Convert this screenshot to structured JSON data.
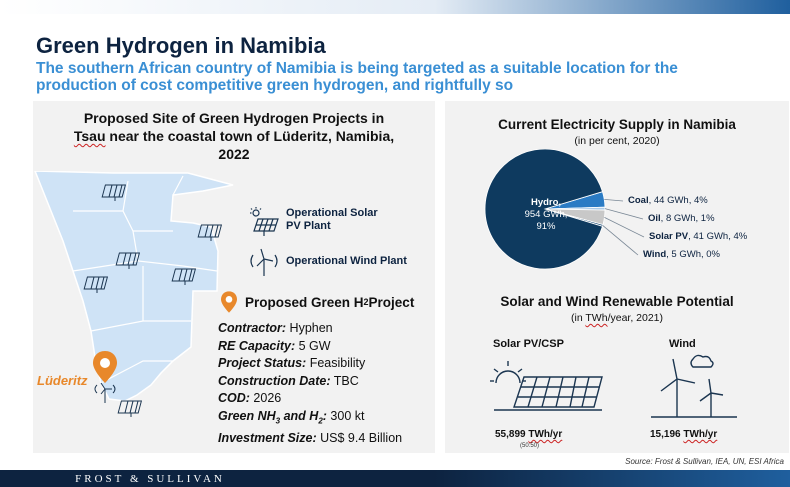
{
  "header": {
    "title": "Green Hydrogen in Namibia",
    "subtitle": "The southern African country of Namibia is being targeted as a suitable location for the production of cost competitive green hydrogen, and rightfully so"
  },
  "map_panel": {
    "title_line1": "Proposed Site of Green Hydrogen Projects in",
    "title_line2_a": "Tsau",
    "title_line2_b": " near the coastal town of Lüderitz, Namibia,",
    "title_line3": "2022",
    "legend_solar": "Operational Solar PV Plant",
    "legend_wind": "Operational Wind Plant",
    "location_label": "Lüderitz",
    "project_heading": "Proposed Green H",
    "project_heading_sub": "2",
    "project_heading_end": " Project",
    "details": {
      "contractor_key": "Contractor:",
      "contractor_val": " Hyphen",
      "re_key": "RE Capacity:",
      "re_val": " 5 GW",
      "status_key": "Project Status:",
      "status_val": " Feasibility",
      "construction_key": "Construction Date:",
      "construction_val": " TBC",
      "cod_key": "COD:",
      "cod_val": " 2026",
      "nh3_key_a": "Green NH",
      "nh3_key_sub1": "3",
      "nh3_key_b": " and H",
      "nh3_key_sub2": "2",
      "nh3_key_c": ":",
      "nh3_val": " 300 kt",
      "invest_key": "Investment Size:",
      "invest_val": " US$ 9.4 Billion"
    }
  },
  "electricity_panel": {
    "title": "Current Electricity Supply in Namibia",
    "subtitle": "(in per cent, 2020)",
    "hydro_label": "Hydro,",
    "hydro_value": "954 GWh,",
    "hydro_pct": "91%",
    "slices": [
      {
        "name": "Coal",
        "detail": ", 44 GWh, 4%"
      },
      {
        "name": "Oil",
        "detail": ", 8 GWh, 1%"
      },
      {
        "name": "Solar PV",
        "detail": ", 41 GWh, 4%"
      },
      {
        "name": "Wind",
        "detail": ", 5 GWh, 0%"
      }
    ]
  },
  "potential_panel": {
    "title": "Solar and Wind Renewable Potential",
    "subtitle_a": "(in ",
    "subtitle_b": "TWh",
    "subtitle_c": "/year, 2021)",
    "solar_head": "Solar PV/CSP",
    "solar_value_a": "55,899 ",
    "solar_value_b": "TWh/yr",
    "solar_note": "(50:50)",
    "wind_head": "Wind",
    "wind_value_a": "15,196 ",
    "wind_value_b": "TWh/yr"
  },
  "footer": {
    "brand": "FROST & SULLIVAN",
    "source": "Source: Frost & Sullivan, IEA, UN, ESI Africa"
  },
  "chart_data": {
    "type": "pie",
    "title": "Current Electricity Supply in Namibia",
    "subtitle": "(in per cent, 2020)",
    "categories": [
      "Hydro",
      "Coal",
      "Oil",
      "Solar PV",
      "Wind"
    ],
    "values": [
      954,
      44,
      8,
      41,
      5
    ],
    "percent": [
      91,
      4,
      1,
      4,
      0
    ],
    "unit": "GWh",
    "colors": [
      "#0e3a5f",
      "#2a7bc4",
      "#a9c9e6",
      "#c8c8c8",
      "#1b4d78"
    ]
  }
}
